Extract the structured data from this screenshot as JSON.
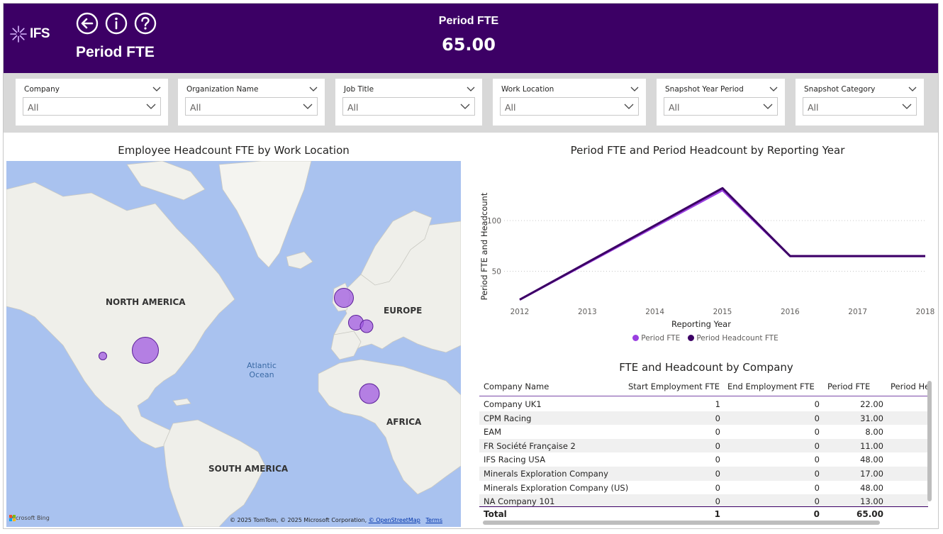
{
  "header": {
    "brand": "IFS",
    "title": "Period FTE",
    "kpi_label": "Period FTE",
    "kpi_value": "65.00",
    "background": "#3c0065"
  },
  "filters": [
    {
      "label": "Company",
      "value": "All"
    },
    {
      "label": "Organization Name",
      "value": "All"
    },
    {
      "label": "Job Title",
      "value": "All"
    },
    {
      "label": "Work Location",
      "value": "All"
    },
    {
      "label": "Snapshot Year Period",
      "value": "All"
    },
    {
      "label": "Snapshot Category",
      "value": "All"
    }
  ],
  "map": {
    "title": "Employee Headcount FTE by Work Location",
    "labels": {
      "north_america": "NORTH AMERICA",
      "europe": "EUROPE",
      "africa": "AFRICA",
      "south_america": "SOUTH AMERICA",
      "atlantic_1": "Atlantic",
      "atlantic_2": "Ocean"
    },
    "bing": "Microsoft Bing",
    "attribution_prefix": "© 2025 TomTom, © 2025 Microsoft Corporation,",
    "attribution_link": "© OpenStreetMap",
    "attribution_terms": "Terms",
    "bubble_color": "#a05ae0"
  },
  "chart_data": {
    "type": "line",
    "title": "Period FTE and Period Headcount by Reporting Year",
    "xlabel": "Reporting Year",
    "ylabel": "Period FTE and Headcount",
    "x": [
      2012,
      2013,
      2014,
      2015,
      2016,
      2017,
      2018
    ],
    "yticks": [
      50,
      100
    ],
    "ylim": [
      21,
      142
    ],
    "grid": true,
    "legend_position": "bottom",
    "series": [
      {
        "name": "Period FTE",
        "color": "#9a3fe0",
        "x": [
          2012,
          2015,
          2016,
          2018
        ],
        "values": [
          22,
          130,
          65,
          65
        ]
      },
      {
        "name": "Period Headcount FTE",
        "color": "#3c0065",
        "x": [
          2012,
          2015,
          2016,
          2018
        ],
        "values": [
          22,
          132,
          65,
          65
        ]
      }
    ]
  },
  "table": {
    "title": "FTE and Headcount by Company",
    "columns": [
      "Company Name",
      "Start Employment FTE",
      "End Employment FTE",
      "Period FTE",
      "Period He"
    ],
    "rows": [
      [
        "Company UK1",
        "1",
        "0",
        "22.00"
      ],
      [
        "CPM Racing",
        "0",
        "0",
        "31.00"
      ],
      [
        "EAM",
        "0",
        "0",
        "8.00"
      ],
      [
        "FR Société Française 2",
        "0",
        "0",
        "11.00"
      ],
      [
        "IFS Racing USA",
        "0",
        "0",
        "48.00"
      ],
      [
        "Minerals Exploration Company",
        "0",
        "0",
        "17.00"
      ],
      [
        "Minerals Exploration Company (US)",
        "0",
        "0",
        "48.00"
      ],
      [
        "NA Company 101",
        "0",
        "0",
        "13.00"
      ]
    ],
    "total": [
      "Total",
      "1",
      "0",
      "65.00"
    ]
  }
}
